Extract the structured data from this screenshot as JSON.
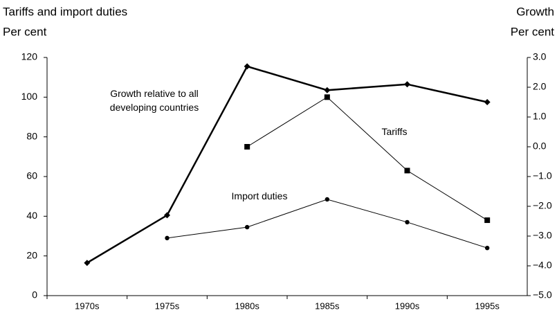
{
  "chart_data": {
    "type": "line",
    "y_label": [
      "Tariffs and import duties",
      "Per cent"
    ],
    "y2_label": [
      "Growth",
      "Per cent"
    ],
    "categories": [
      "1970s",
      "1975s",
      "1980s",
      "1985s",
      "1990s",
      "1995s"
    ],
    "ylim": [
      0,
      120
    ],
    "yticks": [
      0,
      20,
      40,
      60,
      80,
      100,
      120
    ],
    "y2lim": [
      -5,
      3
    ],
    "y2ticks": [
      {
        "value": -5,
        "label": "−5.0"
      },
      {
        "value": -4,
        "label": "−4.0"
      },
      {
        "value": -3,
        "label": "−3.0"
      },
      {
        "value": -2,
        "label": "−2.0"
      },
      {
        "value": -1,
        "label": "−1.0"
      },
      {
        "value": 0,
        "label": "0.0"
      },
      {
        "value": 1,
        "label": "1.0"
      },
      {
        "value": 2,
        "label": "2.0"
      },
      {
        "value": 3,
        "label": "3.0"
      }
    ],
    "series": [
      {
        "name": "Growth relative to all developing countries",
        "color": "#000000",
        "axis": "y2",
        "marker": "diamond",
        "width": 2.5,
        "values": [
          -3.9,
          -2.3,
          2.7,
          1.9,
          2.1,
          1.5
        ]
      },
      {
        "name": "Tariffs",
        "color": "#000000",
        "marker": "square",
        "width": 1,
        "values": [
          null,
          null,
          75,
          100,
          63,
          38
        ]
      },
      {
        "name": "Import duties",
        "color": "#000000",
        "marker": "circle",
        "width": 1,
        "values": [
          null,
          29,
          34.5,
          48.5,
          37,
          24
        ]
      }
    ]
  }
}
